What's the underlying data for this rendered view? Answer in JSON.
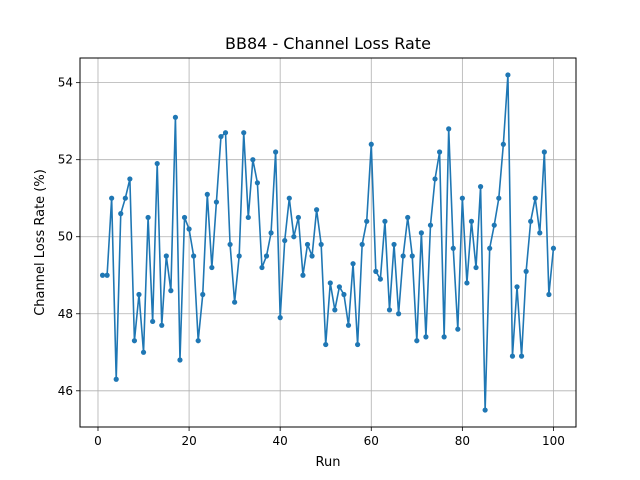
{
  "chart_data": {
    "type": "line",
    "title": "BB84 - Channel Loss Rate",
    "xlabel": "Run",
    "ylabel": "Channel Loss Rate (%)",
    "xlim": [
      -3.95,
      104.95
    ],
    "ylim": [
      45.06,
      54.64
    ],
    "x_ticks": [
      0,
      20,
      40,
      60,
      80,
      100
    ],
    "y_ticks": [
      46,
      48,
      50,
      52,
      54
    ],
    "grid": true,
    "line_color": "#1f77b4",
    "series": [
      {
        "x": [
          1,
          2,
          3,
          4,
          5,
          6,
          7,
          8,
          9,
          10,
          11,
          12,
          13,
          14,
          15,
          16,
          17,
          18,
          19,
          20,
          21,
          22,
          23,
          24,
          25,
          26,
          27,
          28,
          29,
          30,
          31,
          32,
          33,
          34,
          35,
          36,
          37,
          38,
          39,
          40,
          41,
          42,
          43,
          44,
          45,
          46,
          47,
          48,
          49,
          50,
          51,
          52,
          53,
          54,
          55,
          56,
          57,
          58,
          59,
          60,
          61,
          62,
          63,
          64,
          65,
          66,
          67,
          68,
          69,
          70,
          71,
          72,
          73,
          74,
          75,
          76,
          77,
          78,
          79,
          80,
          81,
          82,
          83,
          84,
          85,
          86,
          87,
          88,
          89,
          90,
          91,
          92,
          93,
          94,
          95,
          96,
          97,
          98,
          99,
          100
        ],
        "values": [
          49.0,
          49.0,
          51.0,
          46.3,
          50.6,
          51.0,
          51.5,
          47.3,
          48.5,
          47.0,
          50.5,
          47.8,
          51.9,
          47.7,
          49.5,
          48.6,
          53.1,
          46.8,
          50.5,
          50.2,
          49.5,
          47.3,
          48.5,
          51.1,
          49.2,
          50.9,
          52.6,
          52.7,
          49.8,
          48.3,
          49.5,
          52.7,
          50.5,
          52.0,
          51.4,
          49.2,
          49.5,
          50.1,
          52.2,
          47.9,
          49.9,
          51.0,
          50.0,
          50.5,
          49.0,
          49.8,
          49.5,
          50.7,
          49.8,
          47.2,
          48.8,
          48.1,
          48.7,
          48.5,
          47.7,
          49.3,
          47.2,
          49.8,
          50.4,
          52.4,
          49.1,
          48.9,
          50.4,
          48.1,
          49.8,
          48.0,
          49.5,
          50.5,
          49.5,
          47.3,
          50.1,
          47.4,
          50.3,
          51.5,
          52.2,
          47.4,
          52.8,
          49.7,
          47.6,
          51.0,
          48.8,
          50.4,
          49.2,
          51.3,
          45.5,
          49.7,
          50.3,
          51.0,
          52.4,
          54.2,
          46.9,
          48.7,
          46.9,
          49.1,
          50.4,
          51.0,
          50.1,
          52.2,
          48.5,
          49.7
        ]
      }
    ]
  }
}
